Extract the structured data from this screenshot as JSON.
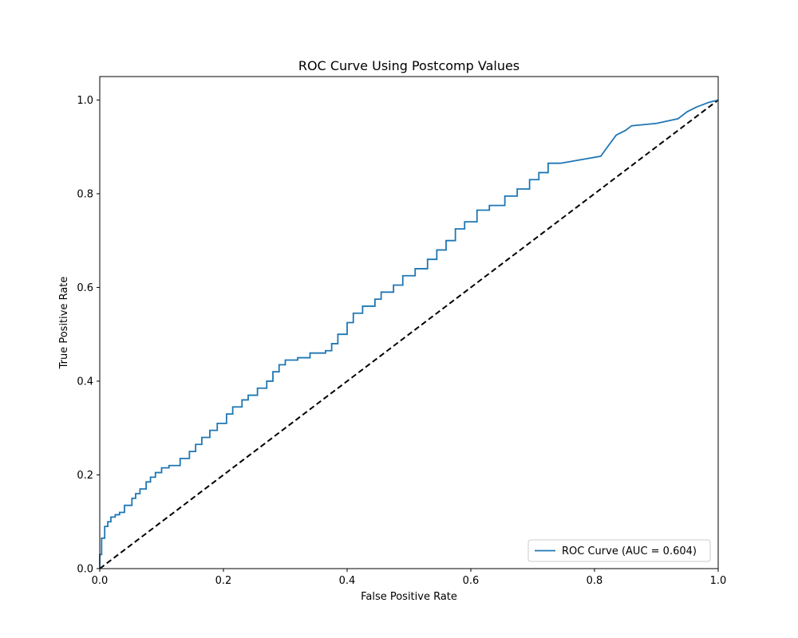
{
  "chart_data": {
    "type": "line",
    "title": "ROC Curve Using Postcomp Values",
    "xlabel": "False Positive Rate",
    "ylabel": "True Positive Rate",
    "xlim": [
      0.0,
      1.0
    ],
    "ylim": [
      0.0,
      1.05
    ],
    "xticks": [
      0.0,
      0.2,
      0.4,
      0.6,
      0.8,
      1.0
    ],
    "yticks": [
      0.0,
      0.2,
      0.4,
      0.6,
      0.8,
      1.0
    ],
    "xtick_labels": [
      "0.0",
      "0.2",
      "0.4",
      "0.6",
      "0.8",
      "1.0"
    ],
    "ytick_labels": [
      "0.0",
      "0.2",
      "0.4",
      "0.6",
      "0.8",
      "1.0"
    ],
    "grid": false,
    "legend_position": "lower-right",
    "series": [
      {
        "name": "ROC Curve (AUC = 0.604)",
        "color": "#1f77b4",
        "style": "solid",
        "x": [
          0.0,
          0.0,
          0.003,
          0.003,
          0.008,
          0.008,
          0.013,
          0.013,
          0.018,
          0.018,
          0.025,
          0.025,
          0.032,
          0.032,
          0.04,
          0.04,
          0.052,
          0.052,
          0.058,
          0.058,
          0.065,
          0.065,
          0.075,
          0.075,
          0.082,
          0.082,
          0.09,
          0.09,
          0.1,
          0.1,
          0.112,
          0.112,
          0.13,
          0.13,
          0.145,
          0.145,
          0.155,
          0.155,
          0.165,
          0.165,
          0.178,
          0.178,
          0.19,
          0.19,
          0.205,
          0.205,
          0.215,
          0.215,
          0.23,
          0.23,
          0.24,
          0.24,
          0.255,
          0.255,
          0.27,
          0.27,
          0.28,
          0.28,
          0.29,
          0.29,
          0.3,
          0.3,
          0.32,
          0.32,
          0.34,
          0.34,
          0.365,
          0.365,
          0.375,
          0.375,
          0.385,
          0.385,
          0.4,
          0.4,
          0.41,
          0.41,
          0.425,
          0.425,
          0.445,
          0.445,
          0.455,
          0.455,
          0.475,
          0.475,
          0.49,
          0.49,
          0.51,
          0.51,
          0.53,
          0.53,
          0.545,
          0.545,
          0.56,
          0.56,
          0.575,
          0.575,
          0.59,
          0.59,
          0.61,
          0.61,
          0.63,
          0.63,
          0.655,
          0.655,
          0.675,
          0.675,
          0.695,
          0.695,
          0.71,
          0.71,
          0.725,
          0.725,
          0.745,
          0.81,
          0.835,
          0.835,
          0.85,
          0.85,
          0.86,
          0.86,
          0.9,
          0.9,
          0.935,
          0.935,
          0.95,
          0.95,
          0.965,
          0.965,
          0.985,
          0.985,
          1.0
        ],
        "y": [
          0.0,
          0.03,
          0.03,
          0.065,
          0.065,
          0.09,
          0.09,
          0.1,
          0.1,
          0.11,
          0.11,
          0.115,
          0.115,
          0.12,
          0.12,
          0.135,
          0.135,
          0.15,
          0.15,
          0.16,
          0.16,
          0.17,
          0.17,
          0.185,
          0.185,
          0.195,
          0.195,
          0.205,
          0.205,
          0.215,
          0.215,
          0.22,
          0.22,
          0.235,
          0.235,
          0.25,
          0.25,
          0.265,
          0.265,
          0.28,
          0.28,
          0.295,
          0.295,
          0.31,
          0.31,
          0.33,
          0.33,
          0.345,
          0.345,
          0.36,
          0.36,
          0.37,
          0.37,
          0.385,
          0.385,
          0.4,
          0.4,
          0.42,
          0.42,
          0.435,
          0.435,
          0.445,
          0.445,
          0.45,
          0.45,
          0.46,
          0.46,
          0.465,
          0.465,
          0.48,
          0.48,
          0.5,
          0.5,
          0.525,
          0.525,
          0.545,
          0.545,
          0.56,
          0.56,
          0.575,
          0.575,
          0.59,
          0.59,
          0.605,
          0.605,
          0.625,
          0.625,
          0.64,
          0.64,
          0.66,
          0.66,
          0.68,
          0.68,
          0.7,
          0.7,
          0.725,
          0.725,
          0.74,
          0.74,
          0.765,
          0.765,
          0.775,
          0.775,
          0.795,
          0.795,
          0.81,
          0.81,
          0.83,
          0.83,
          0.845,
          0.845,
          0.865,
          0.865,
          0.88,
          0.925,
          0.925,
          0.935,
          0.935,
          0.945,
          0.945,
          0.95,
          0.95,
          0.96,
          0.96,
          0.975,
          0.975,
          0.985,
          0.985,
          0.995,
          0.995,
          1.0
        ]
      },
      {
        "name": "",
        "color": "#000000",
        "style": "dashed",
        "x": [
          0.0,
          1.0
        ],
        "y": [
          0.0,
          1.0
        ]
      }
    ]
  }
}
